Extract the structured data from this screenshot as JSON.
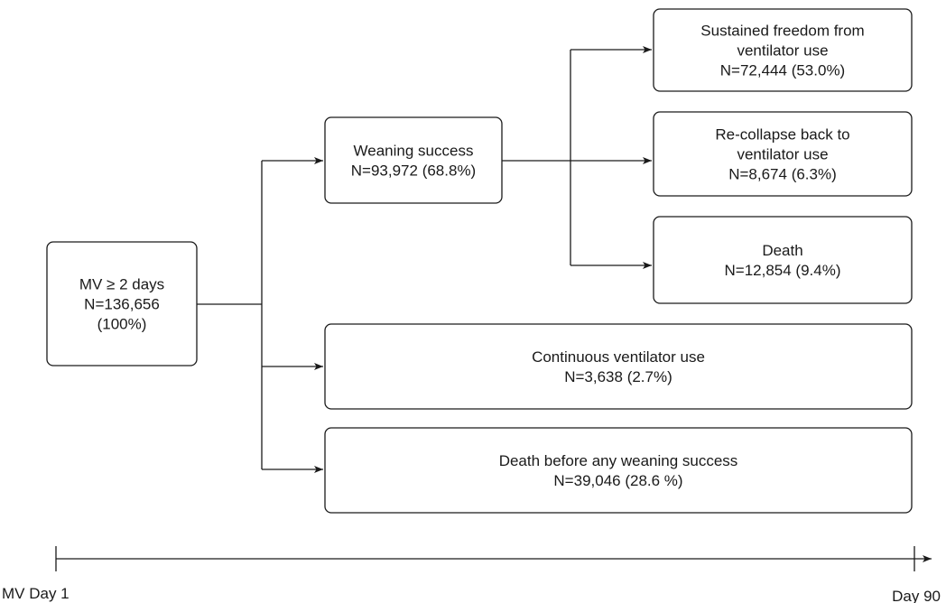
{
  "nodes": [
    {
      "lines": [
        "MV ≥ 2 days",
        "N=136,656",
        "(100%)"
      ]
    },
    {
      "lines": [
        "Weaning success",
        "N=93,972 (68.8%)"
      ]
    },
    {
      "lines": [
        "Sustained freedom from",
        "ventilator use",
        "N=72,444 (53.0%)"
      ]
    },
    {
      "lines": [
        "Re-collapse back to",
        "ventilator use",
        "N=8,674 (6.3%)"
      ]
    },
    {
      "lines": [
        "Death",
        "N=12,854 (9.4%)"
      ]
    },
    {
      "lines": [
        "Continuous ventilator use",
        "N=3,638 (2.7%)"
      ]
    },
    {
      "lines": [
        "Death before any weaning success",
        "N=39,046 (28.6 %)"
      ]
    }
  ],
  "timeline": {
    "start_label": "MV Day 1",
    "end_label": "Day 90"
  }
}
